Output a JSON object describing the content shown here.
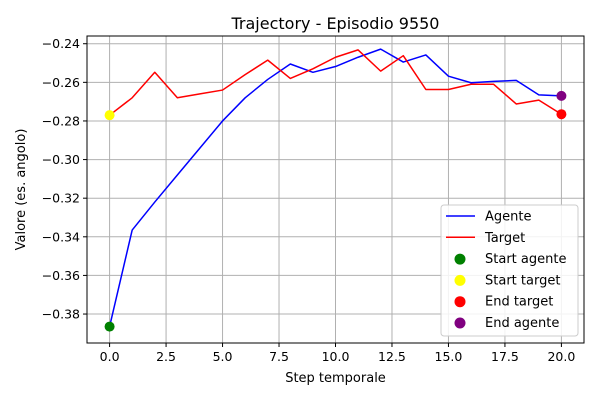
{
  "chart_data": {
    "type": "line",
    "title": "Trajectory - Episodio 9550",
    "xlabel": "Step temporale",
    "ylabel": "Valore (es. angolo)",
    "xlim": [
      -1,
      21
    ],
    "ylim": [
      -0.395,
      -0.236
    ],
    "xticks": [
      0.0,
      2.5,
      5.0,
      7.5,
      10.0,
      12.5,
      15.0,
      17.5,
      20.0
    ],
    "xtick_labels": [
      "0.0",
      "2.5",
      "5.0",
      "7.5",
      "10.0",
      "12.5",
      "15.0",
      "17.5",
      "20.0"
    ],
    "yticks": [
      -0.38,
      -0.36,
      -0.34,
      -0.32,
      -0.3,
      -0.28,
      -0.26,
      -0.24
    ],
    "ytick_labels": [
      "−0.38",
      "−0.36",
      "−0.34",
      "−0.32",
      "−0.30",
      "−0.28",
      "−0.26",
      "−0.24"
    ],
    "grid": true,
    "legend_position": "bottom-right",
    "series": [
      {
        "name": "Agente",
        "kind": "line",
        "color": "#0000ff",
        "x": [
          0,
          1,
          2,
          3,
          4,
          5,
          6,
          7,
          8,
          9,
          10,
          11,
          12,
          13,
          14,
          15,
          16,
          17,
          18,
          19,
          20
        ],
        "y": [
          -0.3865,
          -0.3365,
          -0.322,
          -0.308,
          -0.294,
          -0.28,
          -0.268,
          -0.2585,
          -0.2505,
          -0.2548,
          -0.2518,
          -0.247,
          -0.2428,
          -0.2495,
          -0.2458,
          -0.2568,
          -0.2602,
          -0.2595,
          -0.259,
          -0.2665,
          -0.267
        ]
      },
      {
        "name": "Target",
        "kind": "line",
        "color": "#ff0000",
        "x": [
          0,
          1,
          2,
          3,
          4,
          5,
          6,
          7,
          8,
          9,
          10,
          11,
          12,
          13,
          14,
          15,
          16,
          17,
          18,
          19,
          20
        ],
        "y": [
          -0.277,
          -0.268,
          -0.2548,
          -0.268,
          -0.266,
          -0.264,
          -0.256,
          -0.2485,
          -0.258,
          -0.253,
          -0.247,
          -0.2432,
          -0.2542,
          -0.2462,
          -0.2637,
          -0.2637,
          -0.261,
          -0.261,
          -0.2712,
          -0.2692,
          -0.2765
        ]
      },
      {
        "name": "Start agente",
        "kind": "point",
        "color": "#008000",
        "x": 0,
        "y": -0.3865
      },
      {
        "name": "Start target",
        "kind": "point",
        "color": "#ffff00",
        "x": 0,
        "y": -0.277
      },
      {
        "name": "End target",
        "kind": "point",
        "color": "#ff0000",
        "x": 20,
        "y": -0.2765
      },
      {
        "name": "End agente",
        "kind": "point",
        "color": "#800080",
        "x": 20,
        "y": -0.267
      }
    ]
  }
}
